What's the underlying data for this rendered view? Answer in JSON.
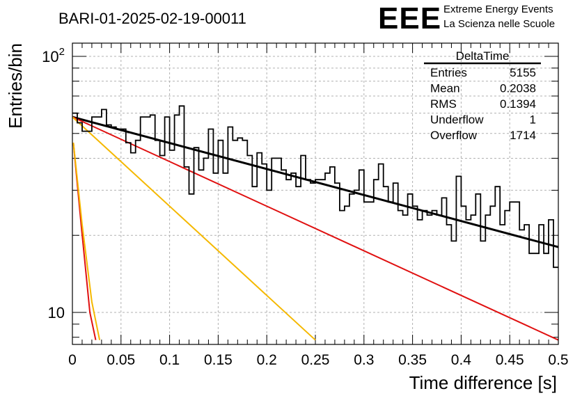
{
  "title": "BARI-01-2025-02-19-00011",
  "logo": {
    "text": "EEE",
    "line1": "Extreme Energy Events",
    "line2": "La Scienza nelle Scuole",
    "color": "#1f1fe0"
  },
  "stats": {
    "name": "DeltaTime",
    "rows": [
      {
        "label": "Entries",
        "value": "5155"
      },
      {
        "label": "Mean",
        "value": "0.2038"
      },
      {
        "label": "RMS",
        "value": "0.1394"
      },
      {
        "label": "Underflow",
        "value": "1"
      },
      {
        "label": "Overflow",
        "value": "1714"
      }
    ]
  },
  "chart_data": {
    "type": "line",
    "title": "BARI-01-2025-02-19-00011",
    "xlabel": "Time difference [s]",
    "ylabel": "Entries/bin",
    "xlim": [
      0,
      0.5
    ],
    "ylim": [
      8,
      120
    ],
    "log_y": true,
    "grid": true,
    "x_tick_labels": [
      "0",
      "0.05",
      "0.1",
      "0.15",
      "0.2",
      "0.25",
      "0.3",
      "0.35",
      "0.4",
      "0.45",
      "0.5"
    ],
    "y_tick_labels": [
      {
        "value": 10,
        "base": "10",
        "exp": ""
      },
      {
        "value": 100,
        "base": "10",
        "exp": "2"
      }
    ],
    "histogram": {
      "bin_width": 0.005,
      "values": [
        60,
        55,
        51,
        51,
        58,
        58,
        62,
        54,
        53,
        52,
        52,
        46,
        42,
        47,
        58,
        58,
        59,
        47,
        41,
        58,
        43,
        59,
        64,
        37,
        29,
        44,
        36,
        40,
        52,
        35,
        47,
        35,
        53,
        47,
        48,
        47,
        41,
        31,
        42,
        38,
        30,
        40,
        40,
        36,
        33,
        35,
        31,
        41,
        33,
        32,
        33,
        33,
        35,
        37,
        32,
        25,
        26,
        29,
        30,
        36,
        27,
        27,
        33,
        38,
        31,
        27,
        32,
        25,
        24,
        29,
        26,
        23,
        25,
        24,
        25,
        24,
        28,
        22,
        19,
        34,
        26,
        23,
        24,
        29,
        19,
        24,
        26,
        31,
        22,
        25,
        27,
        27,
        21,
        22,
        17,
        17,
        22,
        17,
        23,
        15
      ],
      "color": "#000000"
    },
    "series": [
      {
        "curve": "total_fit",
        "x": [
          0,
          0.5
        ],
        "y": [
          58,
          18
        ],
        "color": "#000000"
      },
      {
        "curve": "slow_exp",
        "x": [
          0,
          0.5
        ],
        "y": [
          58,
          7.8
        ],
        "color": "#e01010"
      },
      {
        "curve": "mid_exp",
        "x": [
          0,
          0.25
        ],
        "y": [
          58,
          7.8
        ],
        "color": "#f5b800"
      },
      {
        "curve": "fast_exp_red",
        "x": [
          0.001,
          0.009,
          0.018,
          0.024
        ],
        "y": [
          46,
          22,
          10,
          7.8
        ],
        "color": "#e01010"
      },
      {
        "curve": "fast_exp_yellow",
        "x": [
          0.001,
          0.01,
          0.02,
          0.028
        ],
        "y": [
          46,
          22,
          11,
          7.8
        ],
        "color": "#f5b800"
      }
    ]
  }
}
